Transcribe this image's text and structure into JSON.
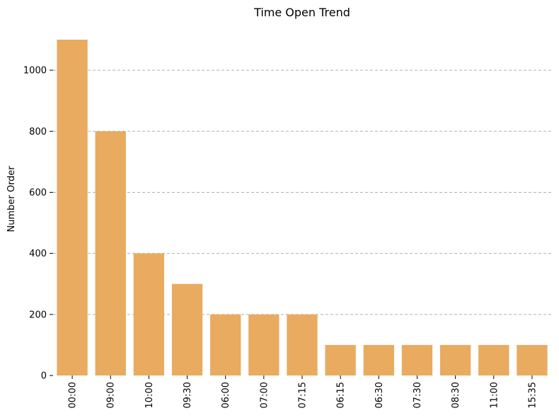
{
  "chart_data": {
    "type": "bar",
    "title": "Time Open Trend",
    "xlabel": "",
    "ylabel": "Number Order",
    "categories": [
      "00:00",
      "09:00",
      "10:00",
      "09:30",
      "06:00",
      "07:00",
      "07:15",
      "06:15",
      "06:30",
      "07:30",
      "08:30",
      "11:00",
      "15:35"
    ],
    "values": [
      1100,
      800,
      400,
      300,
      200,
      200,
      200,
      100,
      100,
      100,
      100,
      100,
      100
    ],
    "ylim": [
      0,
      1100
    ],
    "yticks": [
      0,
      200,
      400,
      600,
      800,
      1000
    ],
    "grid": "y-dashed",
    "bar_color": "#e8ab60",
    "legend": "none"
  }
}
